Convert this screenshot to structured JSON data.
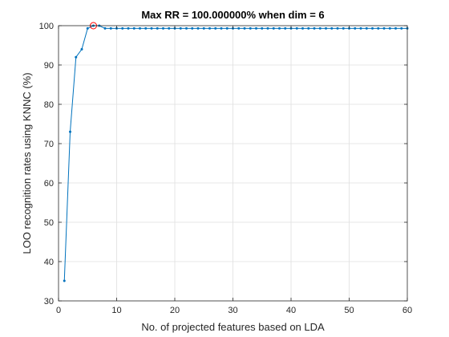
{
  "chart_data": {
    "type": "line",
    "title": "Max RR = 100.000000% when dim = 6",
    "xlabel": "No. of projected features based on LDA",
    "ylabel": "LOO recognition rates using KNNC (%)",
    "xlim": [
      0,
      60
    ],
    "ylim": [
      30,
      100
    ],
    "x_ticks": [
      0,
      10,
      20,
      30,
      40,
      50,
      60
    ],
    "y_ticks": [
      30,
      40,
      50,
      60,
      70,
      80,
      90,
      100
    ],
    "grid": true,
    "line_color": "#0072bd",
    "highlight_color": "#ff0000",
    "series": [
      {
        "x": [
          1,
          2,
          3,
          4,
          5,
          6,
          7,
          8,
          9,
          10,
          11,
          12,
          13,
          14,
          15,
          16,
          17,
          18,
          19,
          20,
          21,
          22,
          23,
          24,
          25,
          26,
          27,
          28,
          29,
          30,
          31,
          32,
          33,
          34,
          35,
          36,
          37,
          38,
          39,
          40,
          41,
          42,
          43,
          44,
          45,
          46,
          47,
          48,
          49,
          50,
          51,
          52,
          53,
          54,
          55,
          56,
          57,
          58,
          59,
          60
        ],
        "values": [
          35.1,
          73.0,
          92.0,
          94.0,
          99.3,
          100,
          100,
          99.3,
          99.3,
          99.3,
          99.3,
          99.3,
          99.3,
          99.3,
          99.3,
          99.3,
          99.3,
          99.3,
          99.3,
          99.3,
          99.3,
          99.3,
          99.3,
          99.3,
          99.3,
          99.3,
          99.3,
          99.3,
          99.3,
          99.3,
          99.3,
          99.3,
          99.3,
          99.3,
          99.3,
          99.3,
          99.3,
          99.3,
          99.3,
          99.3,
          99.3,
          99.3,
          99.3,
          99.3,
          99.3,
          99.3,
          99.3,
          99.3,
          99.3,
          99.3,
          99.3,
          99.3,
          99.3,
          99.3,
          99.3,
          99.3,
          99.3,
          99.3,
          99.3,
          99.3
        ]
      }
    ],
    "highlight": {
      "x": 6,
      "y": 100
    }
  }
}
